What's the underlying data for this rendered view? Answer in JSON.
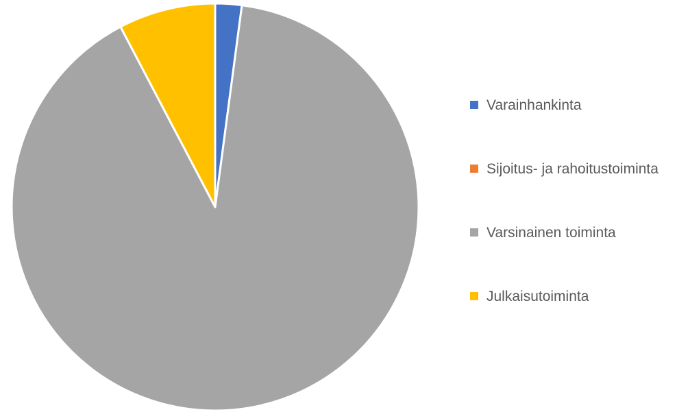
{
  "chart_data": {
    "type": "pie",
    "categories": [
      "Varainhankinta",
      "Sijoitus- ja rahoitustoiminta",
      "Varsinainen toiminta",
      "Julkaisutoiminta"
    ],
    "values": [
      2.1,
      0,
      90.2,
      7.7
    ],
    "colors": [
      "#4472c4",
      "#ed7d31",
      "#a5a5a5",
      "#ffc000"
    ],
    "legend": "right"
  }
}
